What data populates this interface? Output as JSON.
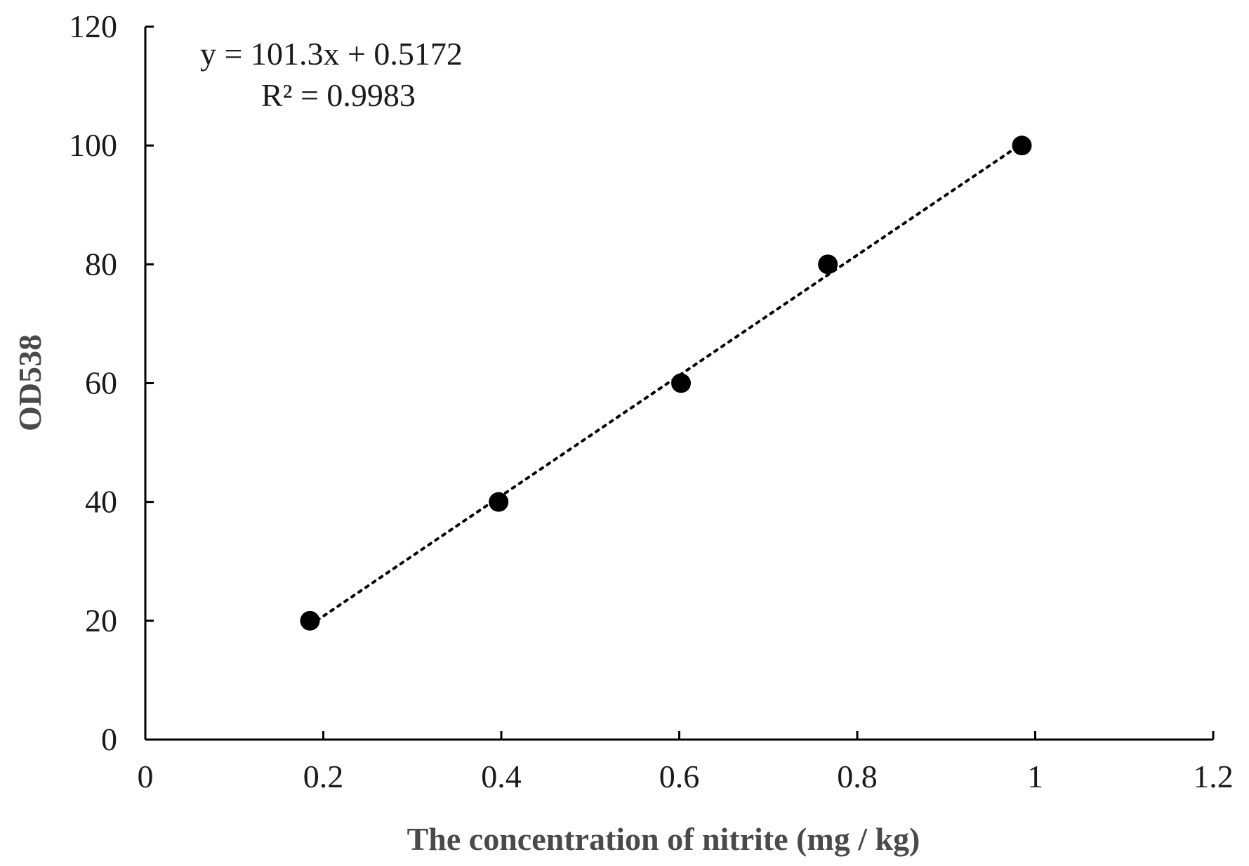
{
  "chart_data": {
    "type": "scatter",
    "title": "",
    "xlabel": "The concentration of nitrite (mg / kg)",
    "ylabel": "OD538",
    "xlim": [
      0,
      1.2
    ],
    "ylim": [
      0,
      120
    ],
    "xticks": [
      "0",
      "0.2",
      "0.4",
      "0.6",
      "0.8",
      "1",
      "1.2"
    ],
    "yticks": [
      "0",
      "20",
      "40",
      "60",
      "80",
      "100",
      "120"
    ],
    "grid": false,
    "series": [
      {
        "points": [
          {
            "x": 0.185,
            "y": 20
          },
          {
            "x": 0.397,
            "y": 40
          },
          {
            "x": 0.602,
            "y": 60
          },
          {
            "x": 0.767,
            "y": 80
          },
          {
            "x": 0.985,
            "y": 100
          }
        ],
        "marker": "filled-circle",
        "color": "#000000"
      }
    ],
    "trendline": {
      "type": "linear",
      "style": "dotted",
      "x_range": [
        0.185,
        0.985
      ]
    },
    "annotations": {
      "equation": "y = 101.3x + 0.5172",
      "r_squared": "R² = 0.9983"
    }
  }
}
